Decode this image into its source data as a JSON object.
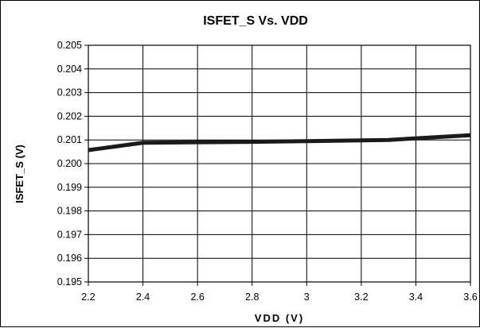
{
  "chart_data": {
    "type": "line",
    "title": "ISFET_S Vs. VDD",
    "xlabel": "VDD (V)",
    "ylabel": "ISFET_S (V)",
    "xlim": [
      2.2,
      3.6
    ],
    "ylim": [
      0.195,
      0.205
    ],
    "x_ticks": [
      "2.2",
      "2.4",
      "2.6",
      "2.8",
      "3",
      "3.2",
      "3.4",
      "3.6"
    ],
    "y_ticks": [
      "0.195",
      "0.196",
      "0.197",
      "0.198",
      "0.199",
      "0.200",
      "0.201",
      "0.202",
      "0.203",
      "0.204",
      "0.205"
    ],
    "grid": true,
    "series": [
      {
        "x": [
          2.2,
          2.4,
          2.6,
          2.8,
          3.0,
          3.3,
          3.6
        ],
        "y": [
          0.20057,
          0.20088,
          0.2009,
          0.20092,
          0.20095,
          0.201,
          0.2012
        ],
        "color": "#1a1a1a"
      }
    ]
  }
}
